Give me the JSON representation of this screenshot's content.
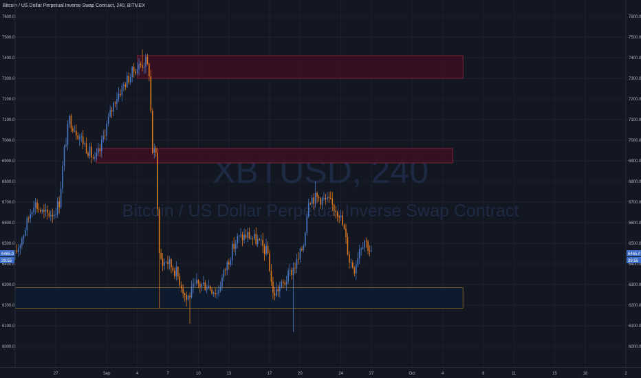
{
  "header": {
    "title": "Bitcoin / US Dollar Perpetual Inverse Swap Contract, 240, BITMEX"
  },
  "watermark": {
    "symbol": "XBTUSD, 240",
    "name": "Bitcoin / US Dollar Perpetual Inverse Swap Contract"
  },
  "price_tag": {
    "price": "6465.0",
    "countdown": "39:55"
  },
  "colors": {
    "up": "#4a78c4",
    "down": "#e07a1f",
    "bg": "#131722",
    "supply_fill": "#3a0f22",
    "supply_border": "#8a2a3a",
    "demand_fill": "#0e1b2e",
    "demand_border": "#8a6a2a"
  },
  "chart_data": {
    "type": "candlestick",
    "ylim": [
      5900,
      7680
    ],
    "y_ticks": [
      "7600.0",
      "7500.0",
      "7400.0",
      "7300.0",
      "7200.0",
      "7100.0",
      "7000.0",
      "6900.0",
      "6800.0",
      "6700.0",
      "6600.0",
      "6500.0",
      "6400.0",
      "6300.0",
      "6200.0",
      "6100.0",
      "6000.0"
    ],
    "x_ticks": [
      {
        "label": "27",
        "x": "2018-08-27"
      },
      {
        "label": "Sep",
        "x": "2018-09-01"
      },
      {
        "label": "4",
        "x": "2018-09-04"
      },
      {
        "label": "7",
        "x": "2018-09-07"
      },
      {
        "label": "10",
        "x": "2018-09-10"
      },
      {
        "label": "13",
        "x": "2018-09-13"
      },
      {
        "label": "17",
        "x": "2018-09-17"
      },
      {
        "label": "20",
        "x": "2018-09-20"
      },
      {
        "label": "24",
        "x": "2018-09-24"
      },
      {
        "label": "27",
        "x": "2018-09-27"
      },
      {
        "label": "Oct",
        "x": "2018-10-01"
      },
      {
        "label": "4",
        "x": "2018-10-04"
      },
      {
        "label": "8",
        "x": "2018-10-08"
      },
      {
        "label": "11",
        "x": "2018-10-11"
      },
      {
        "label": "15",
        "x": "2018-10-15"
      },
      {
        "label": "18",
        "x": "2018-10-18"
      },
      {
        "label": "2",
        "x": "2018-10-22"
      }
    ],
    "xlim": [
      "2018-08-23",
      "2018-10-22"
    ],
    "candle_interval_hours": 4,
    "last_close": 6465.0,
    "zones": [
      {
        "type": "supply",
        "x0": "2018-09-04",
        "x1": "2018-10-06",
        "y0": 7300,
        "y1": 7410
      },
      {
        "type": "supply",
        "x0": "2018-08-31",
        "x1": "2018-10-05",
        "y0": 6890,
        "y1": 6960
      },
      {
        "type": "demand",
        "x0": "2018-08-23",
        "x1": "2018-10-06",
        "y0": 6185,
        "y1": 6285
      }
    ],
    "anchors": [
      [
        "2018-08-23T00:00",
        6420
      ],
      [
        "2018-08-24T00:00",
        6550
      ],
      [
        "2018-08-25T00:00",
        6700
      ],
      [
        "2018-08-26T00:00",
        6640
      ],
      [
        "2018-08-27T00:00",
        6650
      ],
      [
        "2018-08-27T12:00",
        6700
      ],
      [
        "2018-08-28T00:00",
        6950
      ],
      [
        "2018-08-28T12:00",
        7100
      ],
      [
        "2018-08-29T00:00",
        7060
      ],
      [
        "2018-08-30T00:00",
        6980
      ],
      [
        "2018-08-31T00:00",
        6900
      ],
      [
        "2018-08-31T12:00",
        6950
      ],
      [
        "2018-09-01T00:00",
        7050
      ],
      [
        "2018-09-02T00:00",
        7200
      ],
      [
        "2018-09-03T00:00",
        7280
      ],
      [
        "2018-09-04T00:00",
        7350
      ],
      [
        "2018-09-05T00:00",
        7380
      ],
      [
        "2018-09-05T08:00",
        7330
      ],
      [
        "2018-09-05T16:00",
        6950
      ],
      [
        "2018-09-06T00:00",
        6930
      ],
      [
        "2018-09-06T08:00",
        6450
      ],
      [
        "2018-09-06T16:00",
        6400
      ],
      [
        "2018-09-07T00:00",
        6420
      ],
      [
        "2018-09-08T00:00",
        6360
      ],
      [
        "2018-09-08T12:00",
        6300
      ],
      [
        "2018-09-09T00:00",
        6230
      ],
      [
        "2018-09-10T00:00",
        6300
      ],
      [
        "2018-09-11T00:00",
        6300
      ],
      [
        "2018-09-12T00:00",
        6260
      ],
      [
        "2018-09-13T00:00",
        6400
      ],
      [
        "2018-09-13T12:00",
        6470
      ],
      [
        "2018-09-14T00:00",
        6520
      ],
      [
        "2018-09-15T00:00",
        6540
      ],
      [
        "2018-09-16T00:00",
        6510
      ],
      [
        "2018-09-17T00:00",
        6450
      ],
      [
        "2018-09-17T12:00",
        6250
      ],
      [
        "2018-09-18T00:00",
        6280
      ],
      [
        "2018-09-18T12:00",
        6300
      ],
      [
        "2018-09-19T00:00",
        6340
      ],
      [
        "2018-09-20T00:00",
        6420
      ],
      [
        "2018-09-20T12:00",
        6500
      ],
      [
        "2018-09-21T00:00",
        6720
      ],
      [
        "2018-09-22T00:00",
        6720
      ],
      [
        "2018-09-23T00:00",
        6700
      ],
      [
        "2018-09-24T00:00",
        6650
      ],
      [
        "2018-09-24T12:00",
        6560
      ],
      [
        "2018-09-25T00:00",
        6420
      ],
      [
        "2018-09-25T12:00",
        6380
      ],
      [
        "2018-09-26T00:00",
        6480
      ],
      [
        "2018-09-26T12:00",
        6520
      ],
      [
        "2018-09-27T00:00",
        6470
      ]
    ],
    "spikes": [
      {
        "t": "2018-09-19T08:00",
        "low": 6070
      },
      {
        "t": "2018-09-04T12:00",
        "high": 7440
      },
      {
        "t": "2018-09-21T12:00",
        "high": 6800
      },
      {
        "t": "2018-09-09T04:00",
        "low": 6110
      },
      {
        "t": "2018-09-06T04:00",
        "low": 6185
      }
    ]
  }
}
